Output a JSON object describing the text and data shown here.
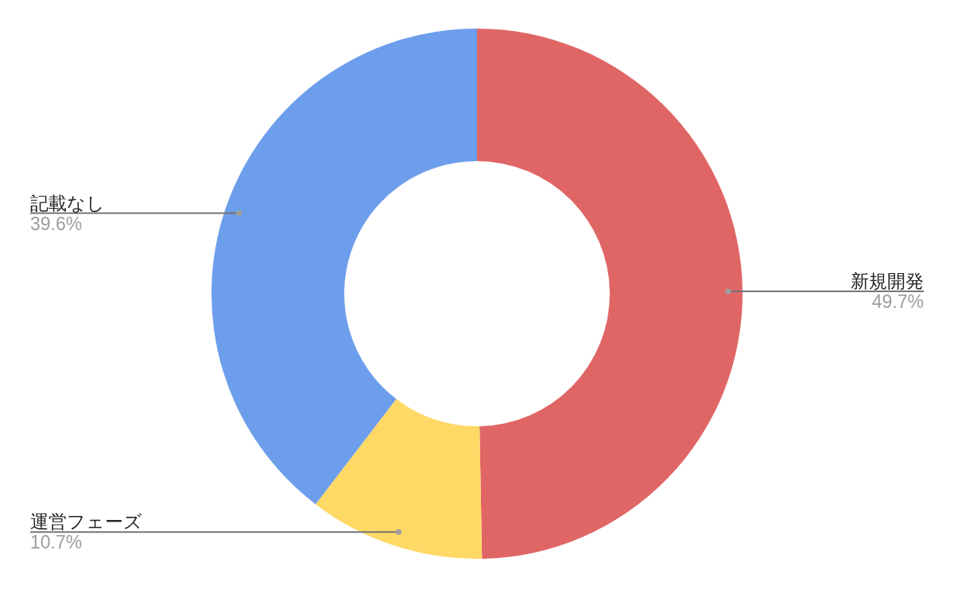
{
  "chart_data": {
    "type": "donut",
    "categories": [
      "新規開発",
      "運営フェーズ",
      "記載なし"
    ],
    "values": [
      49.7,
      10.7,
      39.6
    ],
    "colors": [
      "#e06666",
      "#ffd966",
      "#6d9eeb"
    ],
    "value_labels": [
      "49.7%",
      "10.7%",
      "39.6%"
    ]
  }
}
